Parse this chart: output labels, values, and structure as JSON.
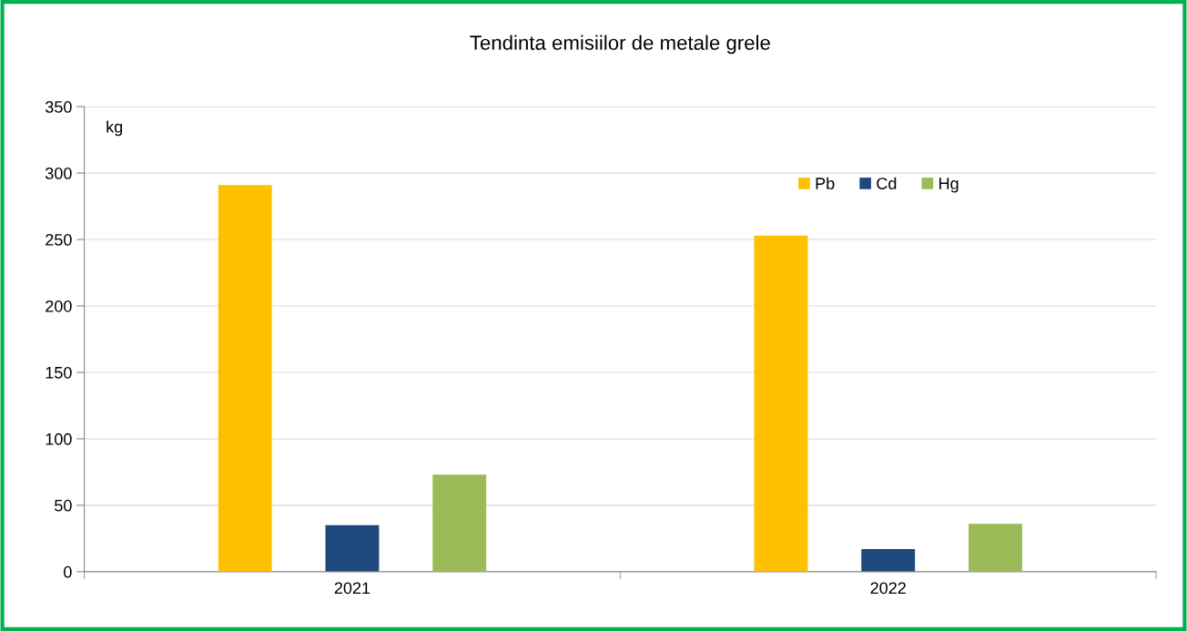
{
  "chart_data": {
    "type": "bar",
    "title": "Tendinta emisiilor de metale grele",
    "ylabel": "kg",
    "categories": [
      "2021",
      "2022"
    ],
    "series": [
      {
        "name": "Pb",
        "color": "#ffc000",
        "values": [
          291,
          253
        ]
      },
      {
        "name": "Cd",
        "color": "#1f497d",
        "values": [
          35,
          17
        ]
      },
      {
        "name": "Hg",
        "color": "#9bbb59",
        "values": [
          73,
          36
        ]
      }
    ],
    "ylim": [
      0,
      350
    ],
    "yticks": [
      0,
      50,
      100,
      150,
      200,
      250,
      300,
      350
    ],
    "grid": "y",
    "legend": "top right"
  }
}
